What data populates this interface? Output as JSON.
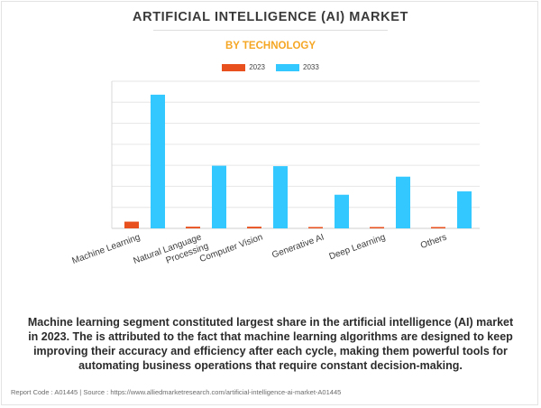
{
  "header": {
    "title": "ARTIFICIAL INTELLIGENCE (AI) MARKET",
    "subtitle": "BY TECHNOLOGY"
  },
  "legend": [
    {
      "label": "2023",
      "color": "#e8501e"
    },
    {
      "label": "2033",
      "color": "#33c8ff"
    }
  ],
  "chart_data": {
    "type": "bar",
    "title": "ARTIFICIAL INTELLIGENCE (AI) MARKET",
    "subtitle": "BY TECHNOLOGY",
    "categories": [
      "Machine Learning",
      "Natural Language Processing",
      "Computer Vision",
      "Generative AI",
      "Deep Learning",
      "Others"
    ],
    "series": [
      {
        "name": "2023",
        "color": "#e8501e",
        "values": [
          0.16,
          0.04,
          0.04,
          0.01,
          0.03,
          0.03
        ]
      },
      {
        "name": "2033",
        "color": "#33c8ff",
        "values": [
          3.18,
          1.49,
          1.48,
          0.8,
          1.23,
          0.88
        ]
      }
    ],
    "ylim": [
      0,
      3.5
    ],
    "y_tick_labels_shown": false,
    "grid": true,
    "legend_position": "top-center"
  },
  "caption": [
    "Machine learning segment constituted largest share in the artificial intelligence (AI) market",
    "in 2023. The is attributed to the fact that machine learning algorithms are designed to keep",
    "improving their accuracy and efficiency after each cycle, making them powerful tools for",
    "automating business operations that require constant decision-making."
  ],
  "footer": "Report Code : A01445  |  Source : https://www.alliedmarketresearch.com/artificial-intelligence-ai-market-A01445"
}
